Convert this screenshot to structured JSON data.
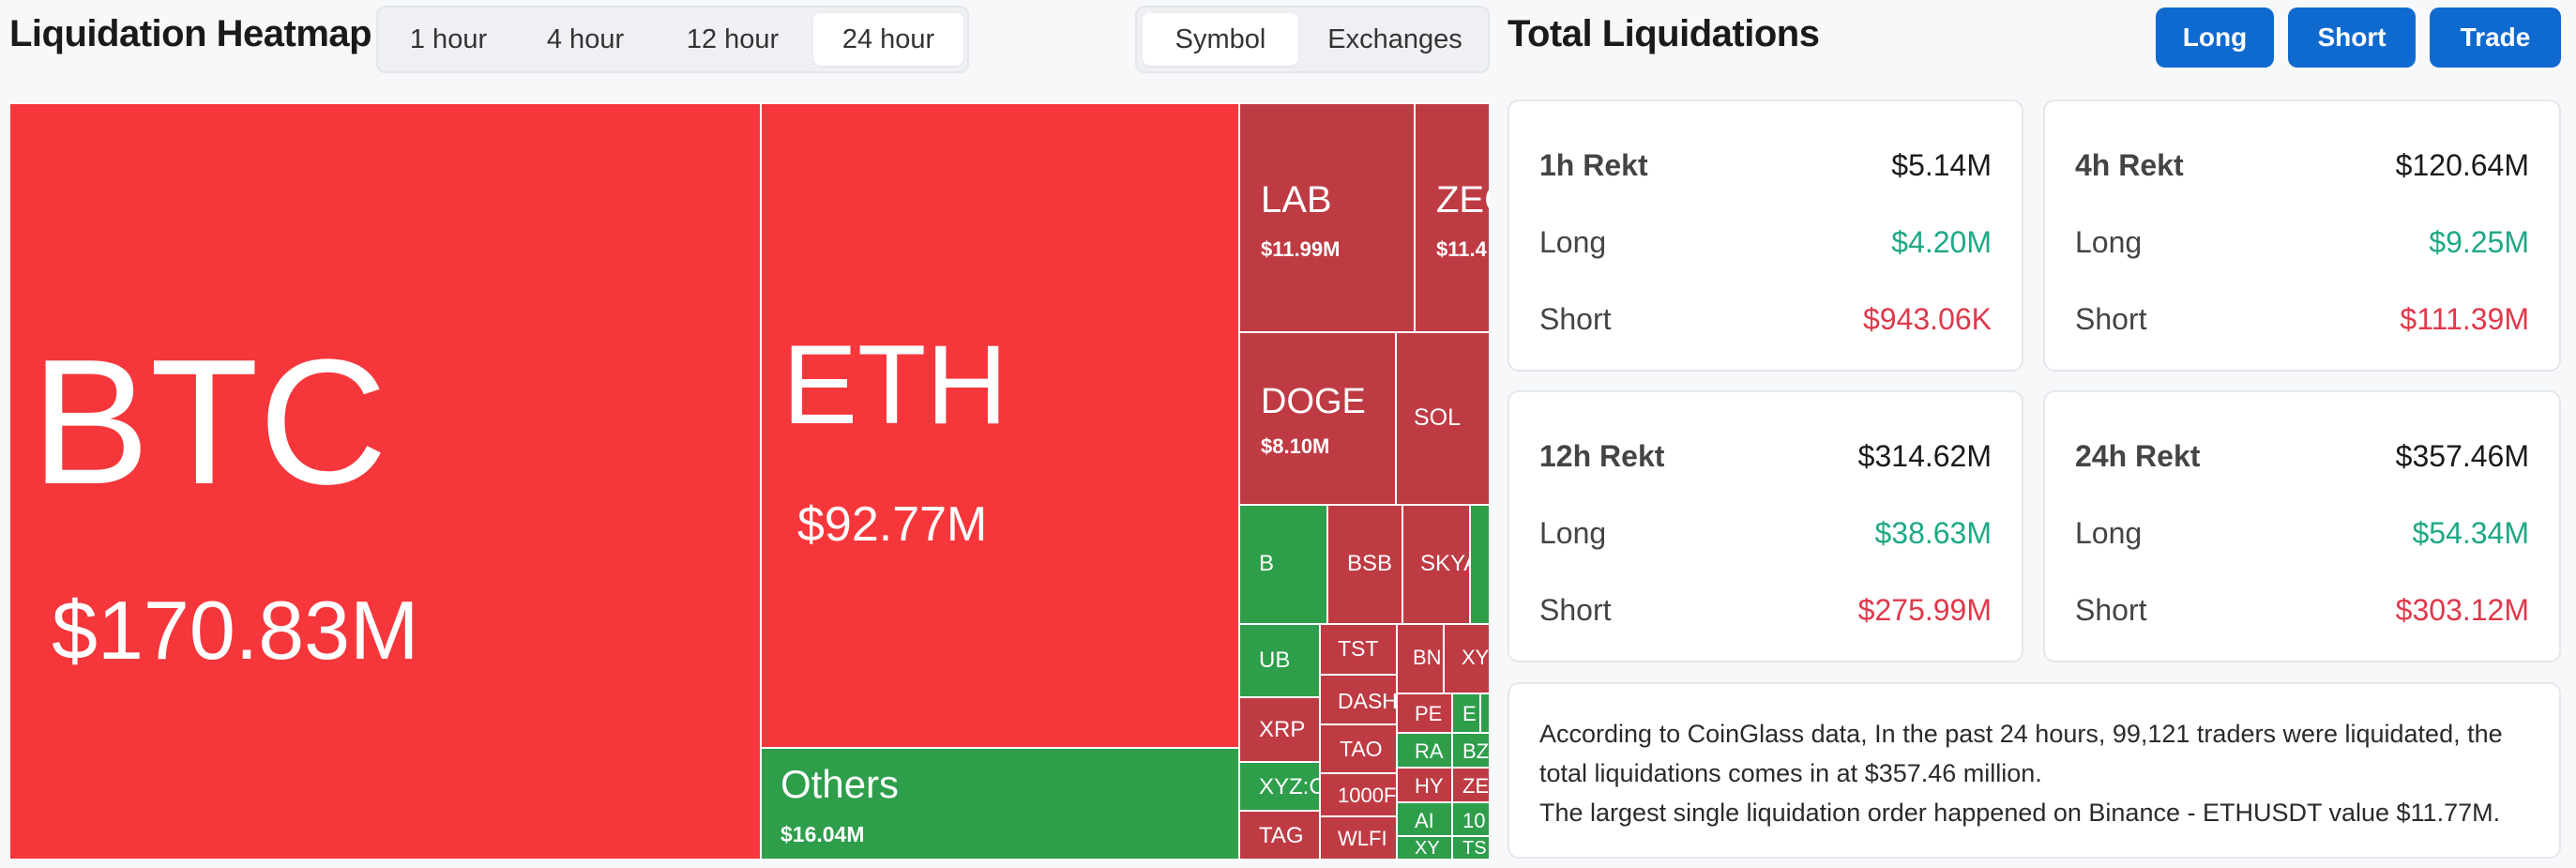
{
  "header": {
    "title": "Liquidation Heatmap",
    "time_tabs": [
      "1 hour",
      "4 hour",
      "12 hour",
      "24 hour"
    ],
    "active_time_tab": "24 hour",
    "group_tabs": [
      "Symbol",
      "Exchanges"
    ],
    "active_group_tab": "Symbol"
  },
  "totals": {
    "title": "Total Liquidations",
    "buttons": {
      "long": "Long",
      "short": "Short",
      "trade": "Trade"
    },
    "cards": [
      {
        "label": "1h Rekt",
        "total": "$5.14M",
        "long_label": "Long",
        "long": "$4.20M",
        "short_label": "Short",
        "short": "$943.06K"
      },
      {
        "label": "4h Rekt",
        "total": "$120.64M",
        "long_label": "Long",
        "long": "$9.25M",
        "short_label": "Short",
        "short": "$111.39M"
      },
      {
        "label": "12h Rekt",
        "total": "$314.62M",
        "long_label": "Long",
        "long": "$38.63M",
        "short_label": "Short",
        "short": "$275.99M"
      },
      {
        "label": "24h Rekt",
        "total": "$357.46M",
        "long_label": "Long",
        "long": "$54.34M",
        "short_label": "Short",
        "short": "$303.12M"
      }
    ],
    "description": {
      "line1": "According to CoinGlass data, In the past 24 hours, 99,121 traders were liquidated, the",
      "line2": "total liquidations comes in at $357.46 million.",
      "line3": "The largest single liquidation order happened on Binance - ETHUSDT value $11.77M."
    }
  },
  "colors": {
    "primary_button": "#0f6ad0",
    "long_green": "#1ea886",
    "short_red": "#e0384b",
    "tile_red_bright": "#f5373c",
    "tile_red_dark": "#bf3b44",
    "tile_green": "#2e9e4b"
  },
  "heatmap": {
    "tiles": [
      {
        "symbol": "BTC",
        "value": "$170.83M",
        "color": "red-bright"
      },
      {
        "symbol": "ETH",
        "value": "$92.77M",
        "color": "red-bright"
      },
      {
        "symbol": "Others",
        "value": "$16.04M",
        "color": "green"
      },
      {
        "symbol": "LAB",
        "value": "$11.99M",
        "color": "red-dark"
      },
      {
        "symbol": "ZEC",
        "value": "$11.4",
        "color": "red-dark"
      },
      {
        "symbol": "DOGE",
        "value": "$8.10M",
        "color": "red-dark"
      },
      {
        "symbol": "SOL",
        "value": "",
        "color": "red-dark"
      },
      {
        "symbol": "B",
        "value": "",
        "color": "green"
      },
      {
        "symbol": "BSB",
        "value": "",
        "color": "red-dark"
      },
      {
        "symbol": "SKYA",
        "value": "",
        "color": "red-dark"
      },
      {
        "symbol": "",
        "value": "",
        "color": "green"
      },
      {
        "symbol": "UB",
        "value": "",
        "color": "green"
      },
      {
        "symbol": "TST",
        "value": "",
        "color": "red-dark"
      },
      {
        "symbol": "BN",
        "value": "",
        "color": "red-dark"
      },
      {
        "symbol": "XY",
        "value": "",
        "color": "red-dark"
      },
      {
        "symbol": "XRP",
        "value": "",
        "color": "red-dark"
      },
      {
        "symbol": "DASH",
        "value": "",
        "color": "red-dark"
      },
      {
        "symbol": "PE",
        "value": "",
        "color": "red-dark"
      },
      {
        "symbol": "E",
        "value": "",
        "color": "green"
      },
      {
        "symbol": "",
        "value": "",
        "color": "green"
      },
      {
        "symbol": "TAO",
        "value": "",
        "color": "red-dark"
      },
      {
        "symbol": "RA",
        "value": "",
        "color": "green"
      },
      {
        "symbol": "BZ",
        "value": "",
        "color": "green"
      },
      {
        "symbol": "XYZ:C",
        "value": "",
        "color": "green"
      },
      {
        "symbol": "HY",
        "value": "",
        "color": "red-dark"
      },
      {
        "symbol": "ZE",
        "value": "",
        "color": "red-dark"
      },
      {
        "symbol": "1000F",
        "value": "",
        "color": "red-dark"
      },
      {
        "symbol": "AI",
        "value": "",
        "color": "green"
      },
      {
        "symbol": "10",
        "value": "",
        "color": "green"
      },
      {
        "symbol": "TAG",
        "value": "",
        "color": "red-dark"
      },
      {
        "symbol": "WLFI",
        "value": "",
        "color": "red-dark"
      },
      {
        "symbol": "XY",
        "value": "",
        "color": "green"
      },
      {
        "symbol": "TS",
        "value": "",
        "color": "green"
      }
    ]
  }
}
